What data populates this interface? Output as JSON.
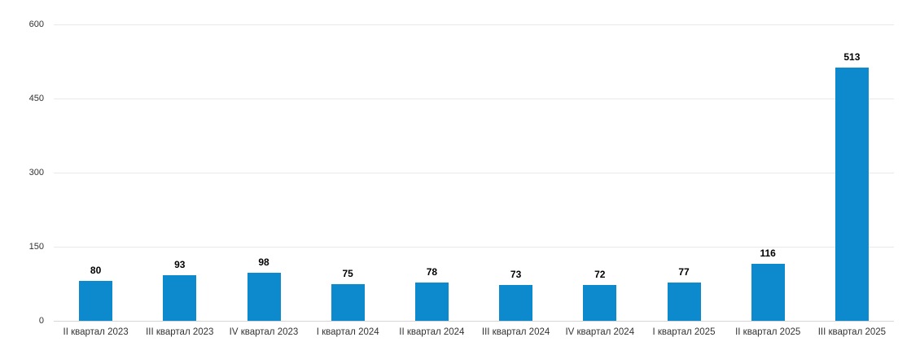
{
  "chart_data": {
    "type": "bar",
    "title": "",
    "xlabel": "",
    "ylabel": "",
    "categories": [
      "II квартал 2023",
      "III квартал 2023",
      "IV квартал 2023",
      "I квартал 2024",
      "II квартал 2024",
      "III квартал 2024",
      "IV квартал 2024",
      "I квартал 2025",
      "II квартал 2025",
      "III квартал 2025"
    ],
    "values": [
      80,
      93,
      98,
      75,
      78,
      73,
      72,
      77,
      116,
      513
    ],
    "ylim": [
      0,
      600
    ],
    "yticks": [
      600,
      450,
      300,
      150,
      0
    ],
    "grid": "horizontal",
    "legend": "none",
    "colors": {
      "bar": "#0d8acd",
      "grid": "#e9e9e9",
      "axis_line": "#d6d6d6",
      "tick_label": "#333333",
      "value_label": "#000000"
    }
  }
}
